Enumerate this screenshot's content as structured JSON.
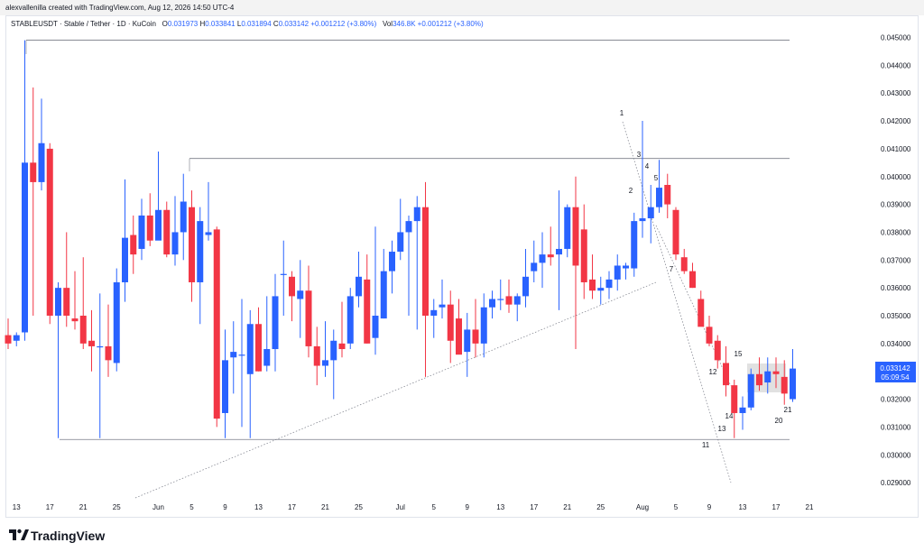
{
  "header": {
    "caption": "alexvallenilla created with TradingView.com, Aug 12, 2026 14:50 UTC-4"
  },
  "legend": {
    "symbol": "STABLEUSDT · Stable / Tether · 1D · KuCoin",
    "o_label": "O",
    "o_value": "0.031973",
    "h_label": "H",
    "h_value": "0.033841",
    "l_label": "L",
    "l_value": "0.031894",
    "c_label": "C",
    "c_value": "0.033142",
    "change": "+0.001212 (+3.80%)",
    "vol_label": "Vol",
    "vol_value": "346.8K",
    "vol_change": "+0.001212 (+3.80%)"
  },
  "price_badge": {
    "price": "0.033142",
    "countdown": "05:09:54",
    "color": "#2962ff"
  },
  "footer": {
    "logo_text": "TradingView"
  },
  "colors": {
    "up": "#2962ff",
    "down": "#f23645",
    "grid_line": "#787b86",
    "axis_text": "#131722",
    "box_fill": "#d9d9d9"
  },
  "chart_data": {
    "type": "candlestick",
    "symbol": "STABLEUSDT",
    "timeframe": "1D",
    "exchange": "KuCoin",
    "y_axis_ticks": [
      "0.045000",
      "0.044000",
      "0.043000",
      "0.042000",
      "0.041000",
      "0.040000",
      "0.039000",
      "0.038000",
      "0.037000",
      "0.036000",
      "0.035000",
      "0.034000",
      "0.033000",
      "0.032000",
      "0.031000",
      "0.030000",
      "0.029000"
    ],
    "y_tick_values": [
      0.045,
      0.044,
      0.043,
      0.042,
      0.041,
      0.04,
      0.039,
      0.038,
      0.037,
      0.036,
      0.035,
      0.034,
      0.033,
      0.032,
      0.031,
      0.03,
      0.029
    ],
    "ylim": [
      0.0283,
      0.0462
    ],
    "x_axis_ticks": [
      "13",
      "17",
      "21",
      "25",
      "Jun",
      "5",
      "9",
      "13",
      "17",
      "21",
      "25",
      "Jul",
      "5",
      "9",
      "13",
      "17",
      "21",
      "25",
      "Aug",
      "5",
      "9",
      "13",
      "17",
      "21"
    ],
    "x_tick_indices": [
      1,
      5,
      9,
      13,
      18,
      22,
      26,
      30,
      34,
      38,
      42,
      47,
      51,
      55,
      59,
      63,
      67,
      71,
      76,
      80,
      84,
      88,
      92,
      96
    ],
    "candles": [
      [
        0.0343,
        0.0349,
        0.0338,
        0.034
      ],
      [
        0.0341,
        0.0344,
        0.0339,
        0.0343
      ],
      [
        0.0344,
        0.0449,
        0.0341,
        0.0405
      ],
      [
        0.0405,
        0.0432,
        0.035,
        0.0398
      ],
      [
        0.0398,
        0.0428,
        0.0395,
        0.0412
      ],
      [
        0.041,
        0.0412,
        0.0347,
        0.035
      ],
      [
        0.035,
        0.0362,
        0.0306,
        0.036
      ],
      [
        0.036,
        0.038,
        0.0346,
        0.035
      ],
      [
        0.0349,
        0.0366,
        0.0345,
        0.0348
      ],
      [
        0.035,
        0.0371,
        0.0338,
        0.034
      ],
      [
        0.0341,
        0.0352,
        0.033,
        0.0339
      ],
      [
        0.0339,
        0.0358,
        0.0306,
        0.0339
      ],
      [
        0.0339,
        0.0354,
        0.0328,
        0.0334
      ],
      [
        0.0333,
        0.0367,
        0.033,
        0.0362
      ],
      [
        0.0362,
        0.0399,
        0.0355,
        0.0378
      ],
      [
        0.0379,
        0.0386,
        0.0365,
        0.0372
      ],
      [
        0.0374,
        0.0392,
        0.037,
        0.0386
      ],
      [
        0.0386,
        0.0394,
        0.0375,
        0.0377
      ],
      [
        0.0377,
        0.0409,
        0.0378,
        0.0388
      ],
      [
        0.0388,
        0.0391,
        0.0371,
        0.0372
      ],
      [
        0.0372,
        0.0393,
        0.0368,
        0.038
      ],
      [
        0.038,
        0.0401,
        0.037,
        0.0391
      ],
      [
        0.0389,
        0.0395,
        0.0355,
        0.0362
      ],
      [
        0.0362,
        0.0389,
        0.0347,
        0.0384
      ],
      [
        0.0379,
        0.0398,
        0.0377,
        0.038
      ],
      [
        0.0381,
        0.0382,
        0.031,
        0.0313
      ],
      [
        0.0315,
        0.0345,
        0.0306,
        0.0334
      ],
      [
        0.0335,
        0.0348,
        0.0322,
        0.0337
      ],
      [
        0.0336,
        0.0356,
        0.031,
        0.0336
      ],
      [
        0.0329,
        0.0352,
        0.0306,
        0.0347
      ],
      [
        0.0347,
        0.0353,
        0.033,
        0.033
      ],
      [
        0.0332,
        0.0357,
        0.033,
        0.0338
      ],
      [
        0.0338,
        0.0365,
        0.033,
        0.0357
      ],
      [
        0.0365,
        0.0377,
        0.035,
        0.0365
      ],
      [
        0.0364,
        0.0366,
        0.0348,
        0.0357
      ],
      [
        0.0356,
        0.037,
        0.0342,
        0.0359
      ],
      [
        0.0359,
        0.0368,
        0.0335,
        0.0339
      ],
      [
        0.0339,
        0.0346,
        0.0325,
        0.0332
      ],
      [
        0.0332,
        0.0348,
        0.0328,
        0.0334
      ],
      [
        0.0334,
        0.0345,
        0.032,
        0.0341
      ],
      [
        0.034,
        0.0355,
        0.0335,
        0.0338
      ],
      [
        0.034,
        0.036,
        0.0338,
        0.0357
      ],
      [
        0.0357,
        0.0373,
        0.0353,
        0.0364
      ],
      [
        0.0363,
        0.0372,
        0.034,
        0.034
      ],
      [
        0.0342,
        0.0382,
        0.0336,
        0.035
      ],
      [
        0.0349,
        0.0374,
        0.0349,
        0.0366
      ],
      [
        0.0366,
        0.0377,
        0.0358,
        0.0373
      ],
      [
        0.0373,
        0.0392,
        0.037,
        0.038
      ],
      [
        0.038,
        0.0386,
        0.035,
        0.0384
      ],
      [
        0.0384,
        0.0393,
        0.0345,
        0.0389
      ],
      [
        0.0389,
        0.0398,
        0.0328,
        0.035
      ],
      [
        0.035,
        0.0356,
        0.0342,
        0.0352
      ],
      [
        0.0353,
        0.0363,
        0.0349,
        0.0354
      ],
      [
        0.0354,
        0.0359,
        0.0333,
        0.0341
      ],
      [
        0.0349,
        0.0356,
        0.0337,
        0.0336
      ],
      [
        0.0337,
        0.0351,
        0.0328,
        0.0345
      ],
      [
        0.0345,
        0.0356,
        0.0335,
        0.034
      ],
      [
        0.034,
        0.0358,
        0.0335,
        0.0353
      ],
      [
        0.0353,
        0.0359,
        0.0349,
        0.0356
      ],
      [
        0.0356,
        0.0363,
        0.0352,
        0.0356
      ],
      [
        0.0357,
        0.0363,
        0.0351,
        0.0354
      ],
      [
        0.0354,
        0.0358,
        0.0348,
        0.0357
      ],
      [
        0.0357,
        0.0374,
        0.0353,
        0.0364
      ],
      [
        0.0366,
        0.0377,
        0.0362,
        0.0369
      ],
      [
        0.0369,
        0.038,
        0.036,
        0.0372
      ],
      [
        0.0372,
        0.0382,
        0.0368,
        0.0371
      ],
      [
        0.0372,
        0.0395,
        0.0352,
        0.0374
      ],
      [
        0.0374,
        0.039,
        0.0371,
        0.0389
      ],
      [
        0.0389,
        0.04,
        0.0338,
        0.0368
      ],
      [
        0.0381,
        0.039,
        0.0356,
        0.0362
      ],
      [
        0.0363,
        0.0372,
        0.0356,
        0.0359
      ],
      [
        0.0359,
        0.0364,
        0.0354,
        0.036
      ],
      [
        0.036,
        0.0366,
        0.0356,
        0.0363
      ],
      [
        0.0363,
        0.0372,
        0.0359,
        0.0368
      ],
      [
        0.0367,
        0.0369,
        0.0363,
        0.0368
      ],
      [
        0.0367,
        0.0387,
        0.0364,
        0.0384
      ],
      [
        0.0384,
        0.042,
        0.0378,
        0.0385
      ],
      [
        0.0385,
        0.0397,
        0.0376,
        0.0389
      ],
      [
        0.0389,
        0.0406,
        0.0387,
        0.0396
      ],
      [
        0.0397,
        0.0401,
        0.0385,
        0.039
      ],
      [
        0.0388,
        0.0389,
        0.037,
        0.0372
      ],
      [
        0.0371,
        0.0374,
        0.0365,
        0.0366
      ],
      [
        0.0366,
        0.0369,
        0.036,
        0.036
      ],
      [
        0.0356,
        0.0359,
        0.0347,
        0.0346
      ],
      [
        0.0346,
        0.035,
        0.0339,
        0.034
      ],
      [
        0.0341,
        0.0343,
        0.0331,
        0.0334
      ],
      [
        0.0333,
        0.0339,
        0.0321,
        0.0325
      ],
      [
        0.0325,
        0.0327,
        0.0306,
        0.0315
      ],
      [
        0.0315,
        0.0321,
        0.0309,
        0.0317
      ],
      [
        0.0317,
        0.0331,
        0.0316,
        0.0329
      ],
      [
        0.0329,
        0.0335,
        0.0323,
        0.0325
      ],
      [
        0.0326,
        0.0335,
        0.0322,
        0.033
      ],
      [
        0.033,
        0.0335,
        0.0324,
        0.0329
      ],
      [
        0.0328,
        0.0334,
        0.0318,
        0.0322
      ],
      [
        0.032,
        0.0338,
        0.0319,
        0.0331
      ]
    ],
    "horizontal_levels": [
      0.0449,
      0.04065,
      0.03055
    ],
    "wave_labels": [
      "1",
      "2",
      "3",
      "4",
      "5",
      "7",
      "11",
      "12",
      "13",
      "14",
      "15",
      "20",
      "21"
    ]
  }
}
